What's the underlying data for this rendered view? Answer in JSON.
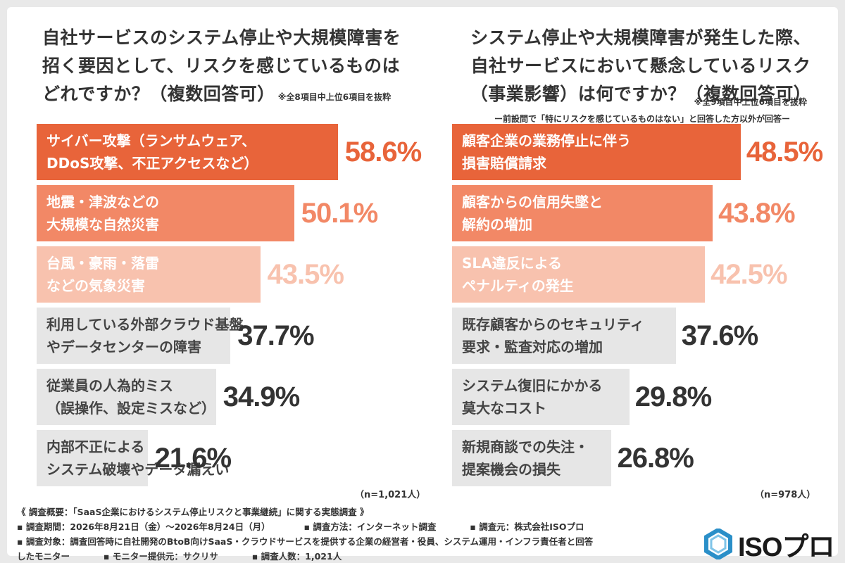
{
  "left": {
    "title_lines": [
      "自社サービスのシステム停止や大規模障害を",
      "招く要因として、リスクを感じているものは",
      "どれですか？（複数回答可）"
    ],
    "note": "※全8項目中上位6項目を抜粋",
    "n_label": "（n=1,021人）"
  },
  "right": {
    "title_lines": [
      "システム停止や大規模障害が発生した際、",
      "自社サービスにおいて懸念しているリスク",
      "（事業影響）は何ですか？（複数回答可）"
    ],
    "note": "※全9項目中上位6項目を抜粋",
    "subnote": "ー前設問で「特にリスクを感じているものはない」と回答した方以外が回答ー",
    "n_label": "（n=978人）"
  },
  "chart_data": [
    {
      "type": "bar",
      "title": "自社サービスのシステム停止や大規模障害を招く要因として、リスクを感じているものはどれですか？（複数回答可）",
      "categories": [
        "サイバー攻撃（ランサムウェア、DDoS攻撃、不正アクセスなど）",
        "地震・津波などの大規模な自然災害",
        "台風・豪雨・落雷などの気象災害",
        "利用している外部クラウド基盤やデータセンターの障害",
        "従業員の人為的ミス（誤操作、設定ミスなど）",
        "内部不正によるシステム破壊やデータ漏えい"
      ],
      "label_lines": [
        [
          "サイバー攻撃（ランサムウェア、",
          "DDoS攻撃、不正アクセスなど）"
        ],
        [
          "地震・津波などの",
          "大規模な自然災害"
        ],
        [
          "台風・豪雨・落雷",
          "などの気象災害"
        ],
        [
          "利用している外部クラウド基盤",
          "やデータセンターの障害"
        ],
        [
          "従業員の人為的ミス",
          "（誤操作、設定ミスなど）"
        ],
        [
          "内部不正による",
          "システム破壊やデータ漏えい"
        ]
      ],
      "values": [
        58.6,
        50.1,
        43.5,
        37.7,
        34.9,
        21.6
      ],
      "value_labels": [
        "58.6%",
        "50.1%",
        "43.5%",
        "37.7%",
        "34.9%",
        "21.6%"
      ],
      "unit": "%",
      "bar_colors": [
        "#e8643a",
        "#f28866",
        "#f8c2ae",
        "#e6e6e6",
        "#e6e6e6",
        "#e6e6e6"
      ],
      "label_colors": [
        "#ffffff",
        "#ffffff",
        "#ffffff",
        "#444444",
        "#444444",
        "#444444"
      ],
      "value_colors": [
        "#e8643a",
        "#f28866",
        "#f8c2ae",
        "#333333",
        "#333333",
        "#333333"
      ]
    },
    {
      "type": "bar",
      "title": "システム停止や大規模障害が発生した際、自社サービスにおいて懸念しているリスク（事業影響）は何ですか？（複数回答可）",
      "categories": [
        "顧客企業の業務停止に伴う損害賠償請求",
        "顧客からの信用失墜と解約の増加",
        "SLA違反によるペナルティの発生",
        "既存顧客からのセキュリティ要求・監査対応の増加",
        "システム復旧にかかる莫大なコスト",
        "新規商談での失注・提案機会の損失"
      ],
      "label_lines": [
        [
          "顧客企業の業務停止に伴う",
          "損害賠償請求"
        ],
        [
          "顧客からの信用失墜と",
          "解約の増加"
        ],
        [
          "SLA違反による",
          "ペナルティの発生"
        ],
        [
          "既存顧客からのセキュリティ",
          "要求・監査対応の増加"
        ],
        [
          "システム復旧にかかる",
          "莫大なコスト"
        ],
        [
          "新規商談での失注・",
          "提案機会の損失"
        ]
      ],
      "values": [
        48.5,
        43.8,
        42.5,
        37.6,
        29.8,
        26.8
      ],
      "value_labels": [
        "48.5%",
        "43.8%",
        "42.5%",
        "37.6%",
        "29.8%",
        "26.8%"
      ],
      "unit": "%",
      "bar_colors": [
        "#e8643a",
        "#f28866",
        "#f8c2ae",
        "#e6e6e6",
        "#e6e6e6",
        "#e6e6e6"
      ],
      "label_colors": [
        "#ffffff",
        "#ffffff",
        "#ffffff",
        "#444444",
        "#444444",
        "#444444"
      ],
      "value_colors": [
        "#e8643a",
        "#f28866",
        "#f8c2ae",
        "#333333",
        "#333333",
        "#333333"
      ]
    }
  ],
  "footer": {
    "line1": "《 調査概要：「SaaS企業におけるシステム停止リスクと事業継続」に関する実態調査 》",
    "period": "▪ 調査期間：2026年8月21日（金）〜2026年8月24日（月）",
    "method": "▪ 調査方法：インターネット調査",
    "organizer": "▪ 調査元：株式会社ISOプロ",
    "target": "▪ 調査対象：調査回答時に自社開発のBtoB向けSaaS・クラウドサービスを提供する企業の経営者・役員、システム運用・インフラ責任者と回答",
    "target_cont": "したモニター",
    "panel_provider": "▪ モニター提供元：サクリサ",
    "respondents": "▪ 調査人数：1,021人"
  },
  "logo": {
    "text": "ISOプロ",
    "color": "#2a8fc8"
  }
}
